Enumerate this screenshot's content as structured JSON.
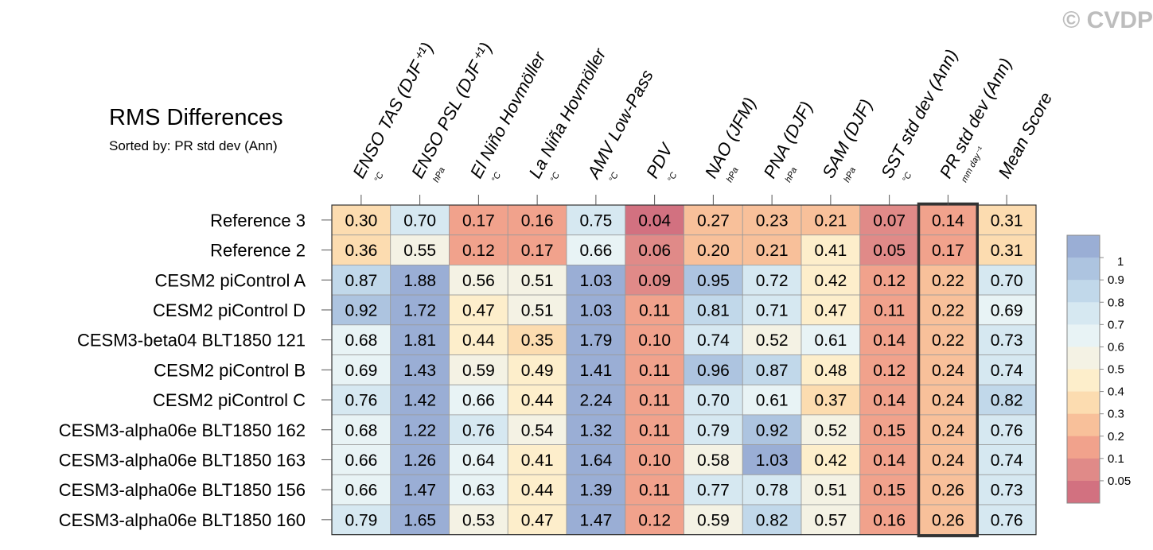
{
  "watermark": "© CVDP",
  "title": "RMS Differences",
  "subtitle": "Sorted by: PR std dev (Ann)",
  "chart_data": {
    "type": "heatmap",
    "title": "RMS Differences",
    "subtitle": "Sorted by: PR std dev (Ann)",
    "columns": [
      {
        "label": "ENSO TAS (DJF⁺¹)",
        "unit": "°C"
      },
      {
        "label": "ENSO PSL (DJF⁺¹)",
        "unit": "hPa"
      },
      {
        "label": "El Niño Hovmöller",
        "unit": "°C"
      },
      {
        "label": "La Niña Hovmöller",
        "unit": "°C"
      },
      {
        "label": "AMV Low-Pass",
        "unit": "°C"
      },
      {
        "label": "PDV",
        "unit": "°C"
      },
      {
        "label": "NAO (JFM)",
        "unit": "hPa"
      },
      {
        "label": "PNA (DJF)",
        "unit": "hPa"
      },
      {
        "label": "SAM (DJF)",
        "unit": "hPa"
      },
      {
        "label": "SST std dev (Ann)",
        "unit": "°C"
      },
      {
        "label": "PR std dev (Ann)",
        "unit": "mm day⁻¹"
      },
      {
        "label": "Mean Score",
        "unit": ""
      }
    ],
    "rows": [
      "Reference 3",
      "Reference 2",
      "CESM2 piControl A",
      "CESM2 piControl D",
      "CESM3-beta04 BLT1850 121",
      "CESM2 piControl B",
      "CESM2 piControl C",
      "CESM3-alpha06e BLT1850 162",
      "CESM3-alpha06e BLT1850 163",
      "CESM3-alpha06e BLT1850 156",
      "CESM3-alpha06e BLT1850 160"
    ],
    "values": [
      [
        0.3,
        0.7,
        0.17,
        0.16,
        0.75,
        0.04,
        0.27,
        0.23,
        0.21,
        0.07,
        0.14,
        0.31
      ],
      [
        0.36,
        0.55,
        0.12,
        0.17,
        0.66,
        0.06,
        0.2,
        0.21,
        0.41,
        0.05,
        0.17,
        0.31
      ],
      [
        0.87,
        1.88,
        0.56,
        0.51,
        1.03,
        0.09,
        0.95,
        0.72,
        0.42,
        0.12,
        0.22,
        0.7
      ],
      [
        0.92,
        1.72,
        0.47,
        0.51,
        1.03,
        0.11,
        0.81,
        0.71,
        0.47,
        0.11,
        0.22,
        0.69
      ],
      [
        0.68,
        1.81,
        0.44,
        0.35,
        1.79,
        0.1,
        0.74,
        0.52,
        0.61,
        0.14,
        0.22,
        0.73
      ],
      [
        0.69,
        1.43,
        0.59,
        0.49,
        1.41,
        0.11,
        0.96,
        0.87,
        0.48,
        0.12,
        0.24,
        0.74
      ],
      [
        0.76,
        1.42,
        0.66,
        0.44,
        2.24,
        0.11,
        0.7,
        0.61,
        0.37,
        0.14,
        0.24,
        0.82
      ],
      [
        0.68,
        1.22,
        0.76,
        0.54,
        1.32,
        0.11,
        0.79,
        0.92,
        0.52,
        0.15,
        0.24,
        0.76
      ],
      [
        0.66,
        1.26,
        0.64,
        0.41,
        1.64,
        0.1,
        0.58,
        1.03,
        0.42,
        0.14,
        0.24,
        0.74
      ],
      [
        0.66,
        1.47,
        0.63,
        0.44,
        1.39,
        0.11,
        0.77,
        0.78,
        0.51,
        0.15,
        0.26,
        0.73
      ],
      [
        0.79,
        1.65,
        0.53,
        0.47,
        1.47,
        0.12,
        0.59,
        0.82,
        0.57,
        0.16,
        0.26,
        0.76
      ]
    ],
    "highlighted_column": "PR std dev (Ann)",
    "colorbar": {
      "labels": [
        "1",
        "0.9",
        "0.8",
        "0.7",
        "0.6",
        "0.5",
        "0.4",
        "0.3",
        "0.2",
        "0.1",
        "0.05"
      ],
      "colors": [
        "#9aaed5",
        "#adc4e0",
        "#c1d8ea",
        "#d6e8f1",
        "#e8f3f5",
        "#f4f2e4",
        "#fdeecb",
        "#fcdcb0",
        "#f8c09a",
        "#f1a28c",
        "#e08a88",
        "#d27180"
      ]
    }
  }
}
